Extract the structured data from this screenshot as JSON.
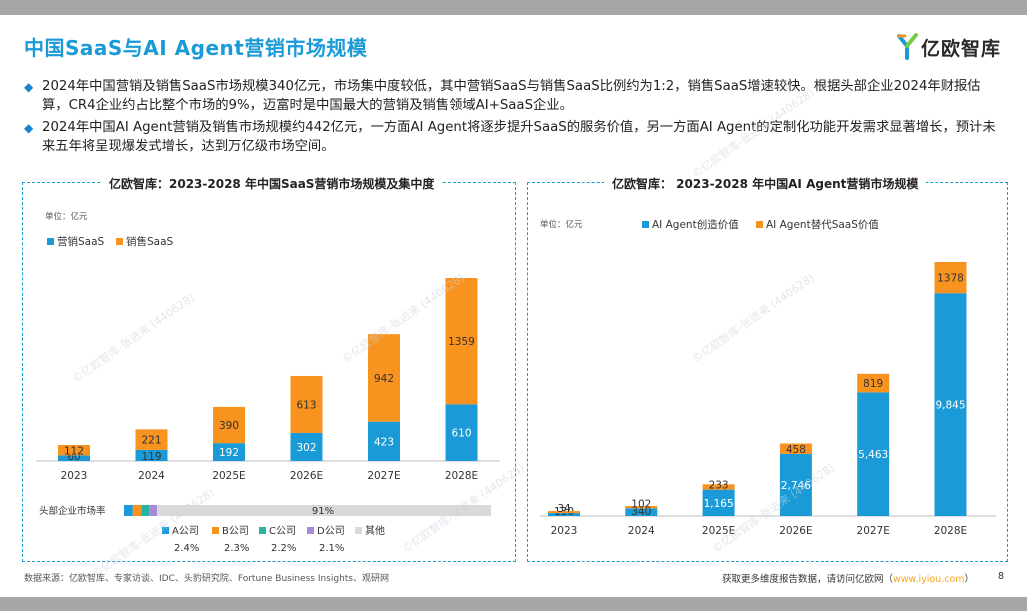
{
  "header": {
    "title": "中国SaaS与AI Agent营销市场规模",
    "logo_text": "亿欧智库"
  },
  "bullets": [
    "2024年中国营销及销售SaaS市场规模340亿元，市场集中度较低，其中营销SaaS与销售SaaS比例约为1:2，销售SaaS增速较快。根据头部企业2024年财报估算，CR4企业约占比整个市场的9%，迈富时是中国最大的营销及销售领域AI+SaaS企业。",
    "2024年中国AI Agent营销及销售市场规模约442亿元，一方面AI Agent将逐步提升SaaS的服务价值，另一方面AI Agent的定制化功能开发需求显著增长，预计未来五年将呈现爆发式增长，达到万亿级市场空间。"
  ],
  "watermark": "©亿欧智库-张进来 (440628)",
  "colors": {
    "blue": "#1a9bd7",
    "orange": "#f7931e",
    "gray": "#d9d9d9",
    "d_purple": "#a78bdb",
    "title": "#1a9bd7"
  },
  "chart_data": [
    {
      "type": "bar",
      "stacked": true,
      "title": "亿欧智库：2023-2028 年中国SaaS营销市场规模及集中度",
      "unit": "单位：亿元",
      "categories": [
        "2023",
        "2024",
        "2025E",
        "2026E",
        "2027E",
        "2028E"
      ],
      "series": [
        {
          "name": "营销SaaS",
          "color": "#1a9bd7",
          "values": [
            60,
            119,
            192,
            302,
            423,
            610
          ],
          "labels": [
            "60",
            "119",
            "192",
            "302",
            "423",
            "610"
          ]
        },
        {
          "name": "销售SaaS",
          "color": "#f7931e",
          "values": [
            112,
            221,
            390,
            613,
            942,
            1359
          ],
          "labels": [
            "112",
            "221",
            "390",
            "613",
            "942",
            "1359"
          ]
        }
      ],
      "ylim": [
        0,
        2000
      ],
      "concentration": {
        "label": "头部企业市场率",
        "others_value_label": "91%",
        "segments": [
          {
            "name": "A公司",
            "value": 2.4,
            "label": "2.4%",
            "color": "#1a9bd7"
          },
          {
            "name": "B公司",
            "value": 2.3,
            "label": "2.3%",
            "color": "#f7931e"
          },
          {
            "name": "C公司",
            "value": 2.2,
            "label": "2.2%",
            "color": "#26b5a0"
          },
          {
            "name": "D公司",
            "value": 2.1,
            "label": "2.1%",
            "color": "#a78bdb"
          },
          {
            "name": "其他",
            "value": 91,
            "label": "",
            "color": "#d9d9d9"
          }
        ]
      }
    },
    {
      "type": "bar",
      "stacked": true,
      "title": "亿欧智库： 2023-2028 年中国AI Agent营销市场规模",
      "unit": "单位：亿元",
      "categories": [
        "2023",
        "2024",
        "2025E",
        "2026E",
        "2027E",
        "2028E"
      ],
      "series": [
        {
          "name": "AI Agent创造价值",
          "color": "#1a9bd7",
          "values": [
            130,
            340,
            1165,
            2746,
            5463,
            9845
          ],
          "labels": [
            "130",
            "340",
            "1,165",
            "2,746",
            "5,463",
            "9,845"
          ]
        },
        {
          "name": "AI Agent替代SaaS价值",
          "color": "#f7931e",
          "values": [
            34,
            102,
            233,
            458,
            819,
            1378
          ],
          "labels": [
            "34",
            "102",
            "233",
            "458",
            "819",
            "1378"
          ]
        }
      ],
      "ylim": [
        0,
        12000
      ]
    }
  ],
  "footer": {
    "source": "数据来源：亿欧智库、专家访谈、IDC、头豹研究院、Fortune Business Insights、观研网",
    "cta": "获取更多维度报告数据，请访问亿欧网（",
    "link": "www.iyiou.com",
    "cta_end": "）",
    "page": "8"
  }
}
